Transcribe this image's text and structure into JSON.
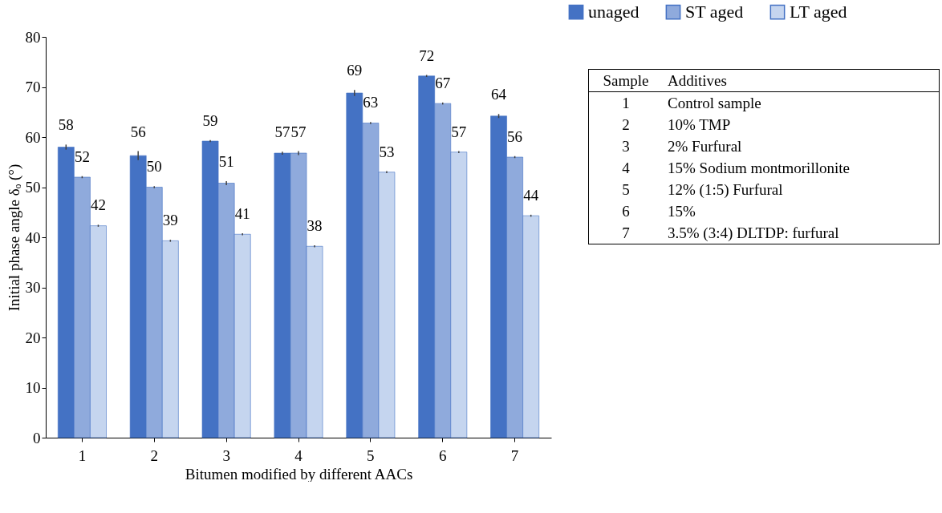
{
  "chart_data": {
    "type": "bar",
    "xlabel": "Bitumen modified by different AACs",
    "ylabel": "Initial phase angle δₒ (°)",
    "categories": [
      "1",
      "2",
      "3",
      "4",
      "5",
      "6",
      "7"
    ],
    "series": [
      {
        "name": "unaged",
        "color": "#4472c4",
        "values": [
          58,
          56.3,
          59.2,
          56.8,
          68.8,
          72.2,
          64.2
        ],
        "errors": [
          0.5,
          0.9,
          0.2,
          0.3,
          0.6,
          0.2,
          0.4
        ],
        "value_labels": [
          "58",
          "56",
          "59",
          "57",
          "69",
          "72",
          "64"
        ]
      },
      {
        "name": "ST aged",
        "color": "#8faadc",
        "values": [
          52,
          50,
          50.8,
          56.8,
          62.8,
          66.7,
          56
        ],
        "errors": [
          0.2,
          0.2,
          0.4,
          0.4,
          0.2,
          0.2,
          0.2
        ],
        "value_labels": [
          "52",
          "50",
          "51",
          "57",
          "63",
          "67",
          "56"
        ]
      },
      {
        "name": "LT aged",
        "color": "#c5d5ef",
        "values": [
          42.3,
          39.3,
          40.6,
          38.2,
          53,
          57,
          44.3
        ],
        "errors": [
          0.2,
          0.2,
          0.2,
          0.2,
          0.2,
          0.2,
          0.2
        ],
        "value_labels": [
          "42",
          "39",
          "41",
          "38",
          "53",
          "57",
          "44"
        ]
      }
    ],
    "ylim": [
      0,
      80
    ],
    "yticks": [
      0,
      10,
      20,
      30,
      40,
      50,
      60,
      70,
      80
    ],
    "grid": false,
    "legend": "top right",
    "annotations": [
      "Sample",
      "Additives",
      "1",
      "Control sample",
      "2",
      "10% TMP",
      "3",
      "2% Furfural",
      "4",
      "15% Sodium montmorillonite",
      "5",
      "12% (1:5) Furfural",
      "6",
      "15%",
      "7",
      "3.5% (3:4) DLTDP: furfural"
    ]
  }
}
